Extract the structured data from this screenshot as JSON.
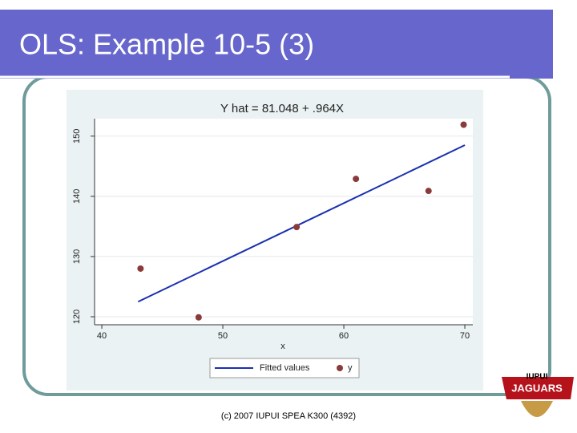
{
  "slide_title": "OLS: Example 10-5 (3)",
  "footer": "(c) 2007 IUPUI SPEA K300 (4392)",
  "logo": {
    "top": "IUPUI",
    "bottom": "JAGUARS"
  },
  "chart_data": {
    "type": "scatter",
    "title": "Y hat = 81.048 + .964X",
    "x_label": "x",
    "xlim": [
      39.4,
      70.66
    ],
    "xticks": [
      40,
      50,
      60,
      70
    ],
    "ylim": [
      118.67,
      152.9
    ],
    "yticks": [
      120,
      130,
      140,
      150
    ],
    "grid": true,
    "legend": "bottom",
    "series": [
      {
        "name": "Fitted values",
        "type": "line",
        "color": "#1a2fb0",
        "x": [
          43,
          70
        ],
        "values": [
          122.5,
          148.5
        ]
      },
      {
        "name": "y",
        "type": "scatter",
        "color": "#8b3a3a",
        "x": [
          43.2,
          48,
          56.1,
          61,
          67,
          69.9
        ],
        "values": [
          128,
          119.9,
          134.9,
          142.9,
          140.9,
          151.9
        ]
      }
    ]
  }
}
